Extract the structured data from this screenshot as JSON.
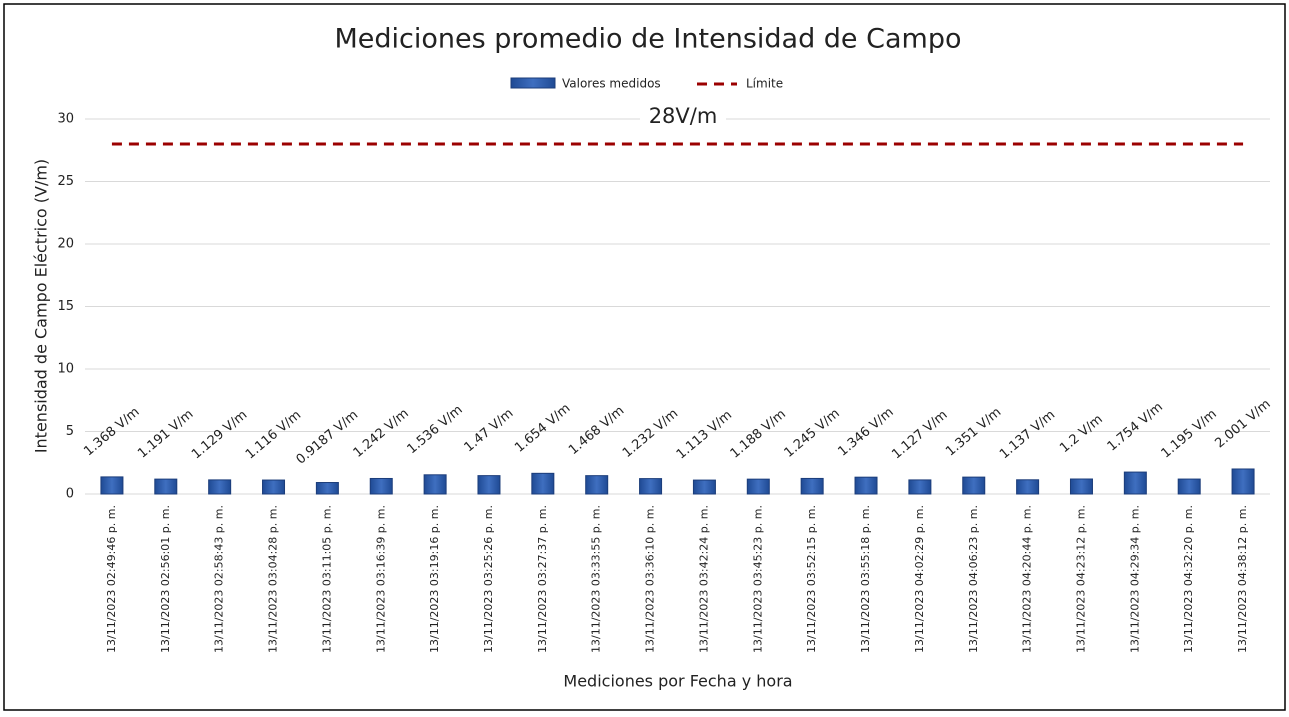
{
  "chart_data": {
    "type": "bar",
    "title": "Mediciones promedio de Intensidad de Campo",
    "x_label": "Mediciones por Fecha y hora",
    "y_label": "Intensidad de Campo Eléctrico (V/m)",
    "categories": [
      "13/11/2023 02:49:46 p. m.",
      "13/11/2023 02:56:01 p. m.",
      "13/11/2023 02:58:43 p. m.",
      "13/11/2023 03:04:28 p. m.",
      "13/11/2023 03:11:05 p. m.",
      "13/11/2023 03:16:39 p. m.",
      "13/11/2023 03:19:16 p. m.",
      "13/11/2023 03:25:26 p. m.",
      "13/11/2023 03:27:37 p. m.",
      "13/11/2023 03:33:55 p. m.",
      "13/11/2023 03:36:10 p. m.",
      "13/11/2023 03:42:24 p. m.",
      "13/11/2023 03:45:23 p. m.",
      "13/11/2023 03:52:15 p. m.",
      "13/11/2023 03:55:18 p. m.",
      "13/11/2023 04:02:29 p. m.",
      "13/11/2023 04:06:23 p. m.",
      "13/11/2023 04:20:44 p. m.",
      "13/11/2023 04:23:12 p. m.",
      "13/11/2023 04:29:34 p. m.",
      "13/11/2023 04:32:20 p. m.",
      "13/11/2023 04:38:12 p. m."
    ],
    "series": [
      {
        "name": "Valores medidos",
        "color": "#2f5ca8",
        "values": [
          1.368,
          1.191,
          1.129,
          1.116,
          0.9187,
          1.242,
          1.536,
          1.47,
          1.654,
          1.468,
          1.232,
          1.113,
          1.188,
          1.245,
          1.346,
          1.127,
          1.351,
          1.137,
          1.2,
          1.754,
          1.195,
          2.001
        ],
        "value_labels": [
          "1.368 V/m",
          "1.191 V/m",
          "1.129 V/m",
          "1.116 V/m",
          "0.9187 V/m",
          "1.242 V/m",
          "1.536 V/m",
          "1.47 V/m",
          "1.654 V/m",
          "1.468 V/m",
          "1.232 V/m",
          "1.113 V/m",
          "1.188 V/m",
          "1.245 V/m",
          "1.346 V/m",
          "1.127 V/m",
          "1.351 V/m",
          "1.137 V/m",
          "1.2 V/m",
          "1.754 V/m",
          "1.195 V/m",
          "2.001 V/m"
        ]
      }
    ],
    "reference_line": {
      "name": "Límite",
      "value": 28,
      "label": "28V/m",
      "color": "#9b0000"
    },
    "ylim": [
      0,
      30
    ],
    "yticks": [
      0,
      5,
      10,
      15,
      20,
      25,
      30
    ],
    "grid": true,
    "legend": "top"
  }
}
